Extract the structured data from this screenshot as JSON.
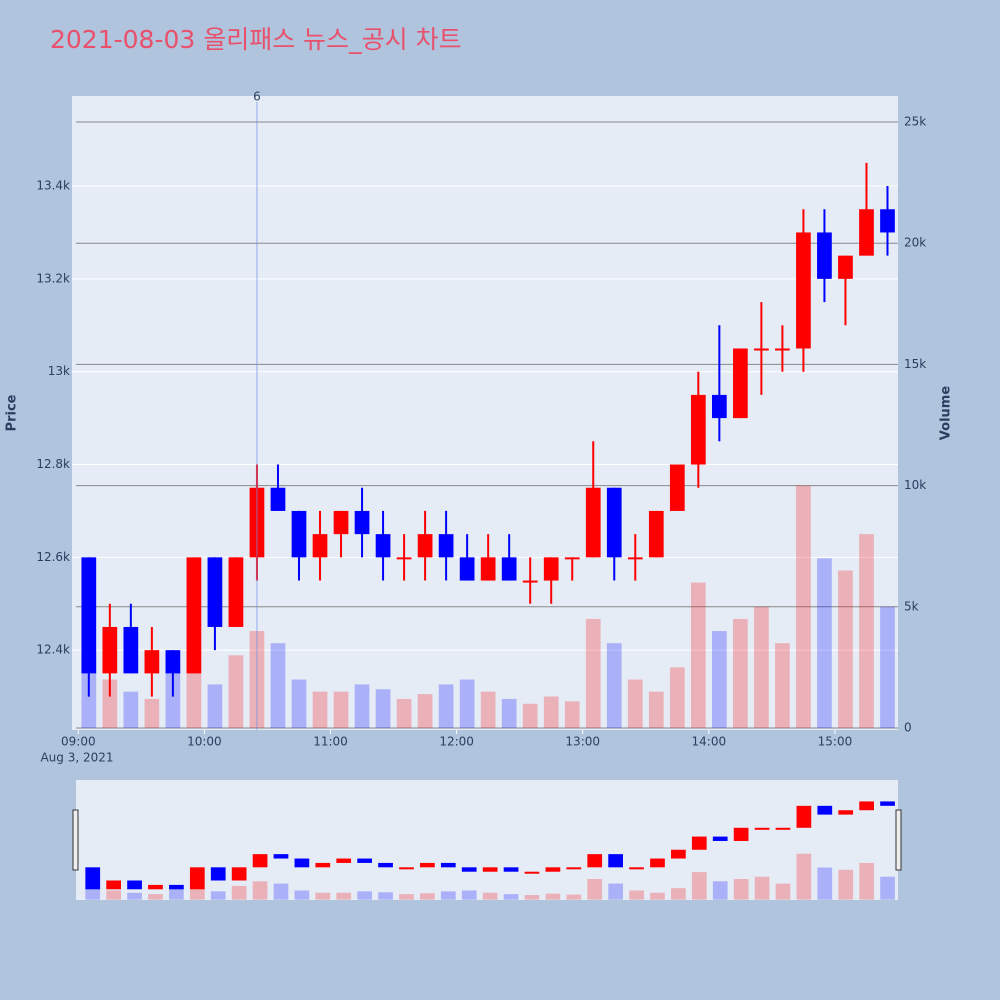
{
  "chart_data": {
    "type": "candlestick",
    "title": "2021-08-03 올리패스 뉴스_공시 차트",
    "x": [
      "09:00",
      "09:10",
      "09:20",
      "09:30",
      "09:40",
      "09:50",
      "10:00",
      "10:10",
      "10:20",
      "10:30",
      "10:40",
      "10:50",
      "11:00",
      "11:10",
      "11:20",
      "11:30",
      "11:40",
      "11:50",
      "12:00",
      "12:10",
      "12:20",
      "12:30",
      "12:40",
      "12:50",
      "13:00",
      "13:10",
      "13:20",
      "13:30",
      "13:40",
      "13:50",
      "14:00",
      "14:10",
      "14:20",
      "14:30",
      "14:40",
      "14:50",
      "15:00",
      "15:10",
      "15:20"
    ],
    "open": [
      12600,
      12350,
      12450,
      12350,
      12400,
      12350,
      12600,
      12450,
      12600,
      12750,
      12700,
      12600,
      12650,
      12700,
      12650,
      12600,
      12600,
      12650,
      12600,
      12550,
      12600,
      12550,
      12550,
      12600,
      12600,
      12750,
      12600,
      12600,
      12700,
      12800,
      12950,
      12900,
      13050,
      13050,
      13050,
      13300,
      13200,
      13250,
      13350
    ],
    "high": [
      12600,
      12500,
      12500,
      12450,
      12400,
      12600,
      12600,
      12600,
      12800,
      12800,
      12700,
      12700,
      12700,
      12750,
      12700,
      12650,
      12700,
      12700,
      12650,
      12650,
      12650,
      12600,
      12600,
      12600,
      12850,
      12750,
      12650,
      12700,
      12800,
      13000,
      13100,
      13050,
      13150,
      13100,
      13350,
      13350,
      13250,
      13450,
      13400
    ],
    "low": [
      12300,
      12300,
      12350,
      12300,
      12300,
      12350,
      12400,
      12450,
      12550,
      12700,
      12550,
      12550,
      12600,
      12600,
      12550,
      12550,
      12550,
      12550,
      12550,
      12550,
      12550,
      12500,
      12500,
      12550,
      12600,
      12550,
      12550,
      12600,
      12700,
      12750,
      12850,
      12900,
      12950,
      13000,
      13000,
      13150,
      13100,
      13250,
      13250
    ],
    "close": [
      12350,
      12450,
      12350,
      12400,
      12350,
      12600,
      12450,
      12600,
      12750,
      12700,
      12600,
      12650,
      12700,
      12650,
      12600,
      12600,
      12650,
      12600,
      12550,
      12600,
      12550,
      12550,
      12600,
      12600,
      12750,
      12600,
      12600,
      12700,
      12800,
      12950,
      12900,
      13050,
      13050,
      13050,
      13300,
      13200,
      13250,
      13350,
      13300
    ],
    "volume": [
      3000,
      2000,
      1500,
      1200,
      2500,
      3500,
      1800,
      3000,
      4000,
      3500,
      2000,
      1500,
      1500,
      1800,
      1600,
      1200,
      1400,
      1800,
      2000,
      1500,
      1200,
      1000,
      1300,
      1100,
      4500,
      3500,
      2000,
      1500,
      2500,
      6000,
      4000,
      4500,
      5000,
      3500,
      10000,
      7000,
      6500,
      8000,
      5000
    ],
    "increasing_color": "#ff0000",
    "decreasing_color": "#0000ff",
    "xlim": [
      "08:57",
      "15:30"
    ],
    "xticks": [
      "09:00",
      "10:00",
      "11:00",
      "12:00",
      "13:00",
      "14:00",
      "15:00"
    ],
    "x_date_label": "Aug 3, 2021",
    "ylim": [
      12228,
      13594
    ],
    "yticks": [
      {
        "value": 12400,
        "label": "12.4k"
      },
      {
        "value": 12600,
        "label": "12.6k"
      },
      {
        "value": 12800,
        "label": "12.8k"
      },
      {
        "value": 13000,
        "label": "13k"
      },
      {
        "value": 13200,
        "label": "13.2k"
      },
      {
        "value": 13400,
        "label": "13.4k"
      }
    ],
    "y2lim": [
      -82,
      26073
    ],
    "y2ticks": [
      0,
      {
        "value": 5000,
        "label": "5k"
      },
      {
        "value": 10000,
        "label": "10k"
      },
      {
        "value": 15000,
        "label": "15k"
      },
      {
        "value": 20000,
        "label": "20k"
      },
      {
        "value": 25000,
        "label": "25k"
      }
    ],
    "yaxis_title": "Price",
    "y2axis_title": "Volume",
    "annotations": [
      {
        "x": "10:25",
        "text": "6"
      }
    ],
    "grid": true,
    "rangeslider": true
  }
}
